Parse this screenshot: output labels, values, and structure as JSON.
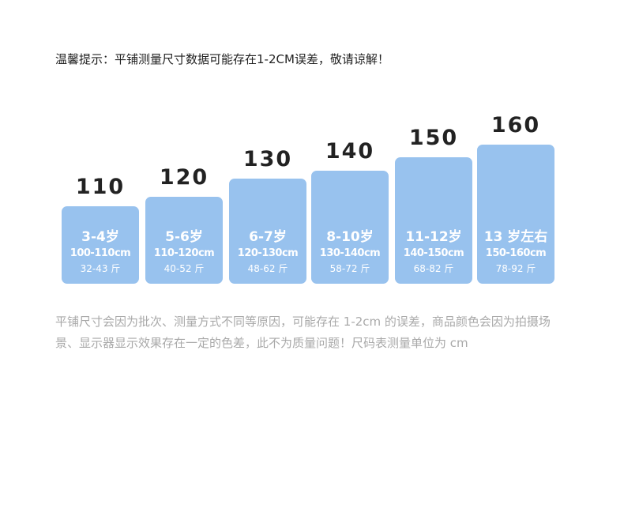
{
  "notice": "温馨提示：平铺测量尺寸数据可能存在1-2CM误差，敬请谅解！",
  "sizes": [
    {
      "size": "110",
      "age": "3-4岁",
      "height": "100-110cm",
      "weight": "32-43 斤"
    },
    {
      "size": "120",
      "age": "5-6岁",
      "height": "110-120cm",
      "weight": "40-52 斤"
    },
    {
      "size": "130",
      "age": "6-7岁",
      "height": "120-130cm",
      "weight": "48-62 斤"
    },
    {
      "size": "140",
      "age": "8-10岁",
      "height": "130-140cm",
      "weight": "58-72 斤"
    },
    {
      "size": "150",
      "age": "11-12岁",
      "height": "140-150cm",
      "weight": "68-82 斤"
    },
    {
      "size": "160",
      "age": "13 岁左右",
      "height": "150-160cm",
      "weight": "78-92 斤"
    }
  ],
  "footnote": "平铺尺寸会因为批次、测量方式不同等原因，可能存在 1-2cm 的误差，商品颜色会因为拍摄场景、显示器显示效果存在一定的色差，此不为质量问题！尺码表测量单位为 cm"
}
